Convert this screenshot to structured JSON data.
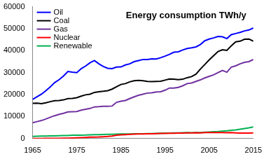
{
  "chart_data": {
    "type": "line",
    "title": "Energy consumption TWh/y",
    "x": [
      1965,
      1966,
      1967,
      1968,
      1969,
      1970,
      1971,
      1972,
      1973,
      1974,
      1975,
      1976,
      1977,
      1978,
      1979,
      1980,
      1981,
      1982,
      1983,
      1984,
      1985,
      1986,
      1987,
      1988,
      1989,
      1990,
      1991,
      1992,
      1993,
      1994,
      1995,
      1996,
      1997,
      1998,
      1999,
      2000,
      2001,
      2002,
      2003,
      2004,
      2005,
      2006,
      2007,
      2008,
      2009,
      2010,
      2011,
      2012,
      2013,
      2014,
      2015
    ],
    "series": [
      {
        "name": "Oil",
        "color": "#0000ff",
        "values": [
          17800,
          19000,
          20200,
          21800,
          23500,
          25500,
          26800,
          28500,
          30500,
          30200,
          30000,
          31800,
          33000,
          34500,
          35500,
          34000,
          32800,
          32000,
          31800,
          32500,
          32600,
          33500,
          34000,
          35000,
          35500,
          36000,
          36000,
          36300,
          36200,
          36800,
          37500,
          38300,
          39300,
          39500,
          40300,
          41000,
          41300,
          41700,
          42800,
          44500,
          45300,
          45800,
          46500,
          46300,
          45500,
          47300,
          47800,
          48300,
          49000,
          49400,
          50300
        ]
      },
      {
        "name": "Coal",
        "color": "#000000",
        "values": [
          16000,
          16100,
          15900,
          16300,
          16800,
          17200,
          17300,
          17600,
          18200,
          18300,
          18600,
          19300,
          19900,
          20200,
          21000,
          21300,
          21500,
          21800,
          22500,
          23600,
          24600,
          25000,
          25800,
          26300,
          26500,
          26300,
          26000,
          25900,
          26000,
          26100,
          26600,
          27100,
          27000,
          26800,
          27000,
          27700,
          28200,
          29300,
          31600,
          33700,
          35800,
          37700,
          39600,
          40400,
          40100,
          42200,
          44000,
          44300,
          45200,
          45300,
          44300
        ]
      },
      {
        "name": "Gas",
        "color": "#7030a0",
        "values": [
          7200,
          7700,
          8200,
          8900,
          9700,
          10400,
          11000,
          11500,
          12100,
          12200,
          12300,
          12900,
          13300,
          13700,
          14400,
          14500,
          14700,
          14700,
          14800,
          16500,
          17000,
          17300,
          18200,
          19000,
          19700,
          20200,
          20700,
          20800,
          21200,
          21300,
          22000,
          23000,
          23000,
          23300,
          24000,
          25000,
          25300,
          26000,
          26700,
          27600,
          28300,
          29000,
          30000,
          31000,
          30200,
          32500,
          33100,
          34000,
          34700,
          35000,
          36000
        ]
      },
      {
        "name": "Nuclear",
        "color": "#ff0000",
        "values": [
          30,
          40,
          50,
          60,
          70,
          80,
          110,
          150,
          200,
          260,
          350,
          420,
          520,
          620,
          650,
          710,
          850,
          950,
          1100,
          1500,
          1700,
          1800,
          1900,
          2000,
          2050,
          2100,
          2150,
          2200,
          2250,
          2300,
          2350,
          2400,
          2400,
          2450,
          2500,
          2550,
          2600,
          2650,
          2600,
          2700,
          2700,
          2750,
          2700,
          2700,
          2650,
          2750,
          2600,
          2450,
          2450,
          2500,
          2550
        ]
      },
      {
        "name": "Renewable",
        "color": "#00b050",
        "values": [
          1000,
          1050,
          1100,
          1150,
          1200,
          1250,
          1300,
          1350,
          1400,
          1500,
          1550,
          1550,
          1600,
          1700,
          1750,
          1800,
          1850,
          1900,
          1950,
          2000,
          2050,
          2100,
          2100,
          2150,
          2150,
          2200,
          2250,
          2250,
          2350,
          2400,
          2450,
          2500,
          2550,
          2600,
          2650,
          2700,
          2650,
          2700,
          2750,
          2900,
          3000,
          3100,
          3200,
          3400,
          3500,
          3750,
          3950,
          4250,
          4550,
          4850,
          5300
        ]
      }
    ],
    "xlim": [
      1965,
      2015
    ],
    "xticks": [
      1965,
      1975,
      1985,
      1995,
      2005,
      2015
    ],
    "ylim": [
      0,
      60000
    ],
    "yticks": [
      0,
      10000,
      20000,
      30000,
      40000,
      50000,
      60000
    ],
    "grid": false,
    "legend": "top-left"
  }
}
